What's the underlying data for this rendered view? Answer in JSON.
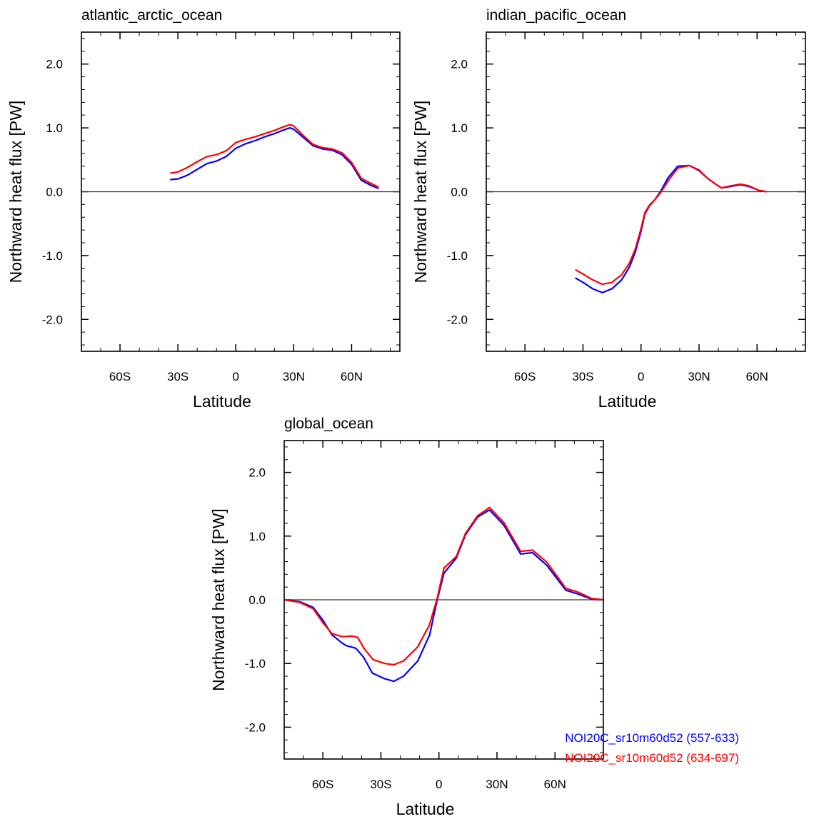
{
  "chart_data": [
    {
      "type": "line",
      "title": "atlantic_arctic_ocean",
      "xlabel": "Latitude",
      "ylabel": "Northward heat flux [PW]",
      "xlim": [
        -80,
        85
      ],
      "ylim": [
        -2.5,
        2.5
      ],
      "xticks": [
        -60,
        -30,
        0,
        30,
        60
      ],
      "xticklabels": [
        "60S",
        "30S",
        "0",
        "30N",
        "60N"
      ],
      "yticks": [
        -2,
        -1,
        0,
        1,
        2
      ],
      "yticklabels": [
        "-2.0",
        "-1.0",
        "0.0",
        "1.0",
        "2.0"
      ],
      "reference_line": 0,
      "series": [
        {
          "name": "NOI20C_sr10m60d52 (557-633)",
          "color": "#0000ff",
          "x": [
            -34,
            -30,
            -25,
            -20,
            -15,
            -10,
            -5,
            0,
            5,
            10,
            15,
            20,
            25,
            28,
            30,
            35,
            40,
            45,
            50,
            55,
            60,
            65,
            70,
            74
          ],
          "y": [
            0.19,
            0.2,
            0.26,
            0.35,
            0.44,
            0.48,
            0.55,
            0.68,
            0.75,
            0.8,
            0.86,
            0.91,
            0.97,
            1.0,
            0.98,
            0.85,
            0.72,
            0.67,
            0.65,
            0.58,
            0.43,
            0.18,
            0.1,
            0.05
          ]
        },
        {
          "name": "NOI20C_sr10m60d52 (634-697)",
          "color": "#ff0000",
          "x": [
            -34,
            -30,
            -25,
            -20,
            -15,
            -10,
            -5,
            0,
            5,
            10,
            15,
            20,
            25,
            28,
            30,
            35,
            40,
            45,
            50,
            55,
            60,
            65,
            70,
            74
          ],
          "y": [
            0.29,
            0.31,
            0.38,
            0.47,
            0.55,
            0.58,
            0.64,
            0.77,
            0.82,
            0.86,
            0.91,
            0.96,
            1.02,
            1.05,
            1.03,
            0.88,
            0.74,
            0.69,
            0.67,
            0.61,
            0.46,
            0.21,
            0.13,
            0.07
          ]
        }
      ]
    },
    {
      "type": "line",
      "title": "indian_pacific_ocean",
      "xlabel": "Latitude",
      "ylabel": "Northward heat flux [PW]",
      "xlim": [
        -80,
        85
      ],
      "ylim": [
        -2.5,
        2.5
      ],
      "xticks": [
        -60,
        -30,
        0,
        30,
        60
      ],
      "xticklabels": [
        "60S",
        "30S",
        "0",
        "30N",
        "60N"
      ],
      "yticks": [
        -2,
        -1,
        0,
        1,
        2
      ],
      "yticklabels": [
        "-2.0",
        "-1.0",
        "0.0",
        "1.0",
        "2.0"
      ],
      "reference_line": 0,
      "series": [
        {
          "name": "NOI20C_sr10m60d52 (557-633)",
          "color": "#0000ff",
          "x": [
            -34,
            -30,
            -25,
            -20,
            -15,
            -10,
            -6,
            -3,
            0,
            2,
            4.4,
            7,
            10,
            14,
            19,
            25,
            30,
            34,
            38,
            41.5,
            46,
            51.5,
            56,
            61,
            65
          ],
          "y": [
            -1.35,
            -1.42,
            -1.52,
            -1.58,
            -1.52,
            -1.38,
            -1.18,
            -0.95,
            -0.62,
            -0.35,
            -0.22,
            -0.13,
            0.0,
            0.22,
            0.4,
            0.41,
            0.33,
            0.22,
            0.13,
            0.06,
            0.08,
            0.11,
            0.08,
            0.02,
            0.0
          ]
        },
        {
          "name": "NOI20C_sr10m60d52 (634-697)",
          "color": "#ff0000",
          "x": [
            -34,
            -30,
            -25,
            -20,
            -15,
            -10,
            -6,
            -3,
            0,
            2,
            4.4,
            7,
            10,
            14,
            19,
            25,
            30,
            34,
            38,
            41.5,
            46,
            51.5,
            56,
            61,
            65
          ],
          "y": [
            -1.22,
            -1.29,
            -1.38,
            -1.45,
            -1.42,
            -1.3,
            -1.12,
            -0.9,
            -0.58,
            -0.33,
            -0.21,
            -0.13,
            -0.02,
            0.17,
            0.37,
            0.41,
            0.34,
            0.22,
            0.13,
            0.06,
            0.09,
            0.12,
            0.09,
            0.02,
            0.0
          ]
        }
      ]
    },
    {
      "type": "line",
      "title": "global_ocean",
      "xlabel": "Latitude",
      "ylabel": "Northward heat flux [PW]",
      "xlim": [
        -80,
        85
      ],
      "ylim": [
        -2.5,
        2.5
      ],
      "xticks": [
        -60,
        -30,
        0,
        30,
        60
      ],
      "xticklabels": [
        "60S",
        "30S",
        "0",
        "30N",
        "60N"
      ],
      "yticks": [
        -2,
        -1,
        0,
        1,
        2
      ],
      "yticklabels": [
        "-2.0",
        "-1.0",
        "0.0",
        "1.0",
        "2.0"
      ],
      "reference_line": 0,
      "legend": "bottom-right",
      "series": [
        {
          "name": "NOI20C_sr10m60d52 (557-633)",
          "color": "#0000ff",
          "x": [
            -80,
            -72,
            -65,
            -60,
            -55.3,
            -50,
            -47.9,
            -43,
            -39,
            -34.4,
            -28,
            -23.3,
            -18.3,
            -10.9,
            -4.8,
            -1.1,
            2.6,
            8.9,
            13.7,
            20,
            26.2,
            33.6,
            42.2,
            48.4,
            55.8,
            65.6,
            71.9,
            79,
            85
          ],
          "y": [
            0,
            -0.03,
            -0.12,
            -0.32,
            -0.55,
            -0.68,
            -0.72,
            -0.76,
            -0.9,
            -1.15,
            -1.24,
            -1.28,
            -1.2,
            -0.96,
            -0.55,
            -0.03,
            0.42,
            0.65,
            1.02,
            1.3,
            1.41,
            1.17,
            0.72,
            0.74,
            0.54,
            0.15,
            0.09,
            0.01,
            0
          ]
        },
        {
          "name": "NOI20C_sr10m60d52 (634-697)",
          "color": "#ff0000",
          "x": [
            -80,
            -72,
            -65,
            -60,
            -55.3,
            -50,
            -45,
            -42,
            -38.6,
            -34,
            -28,
            -23.3,
            -18.3,
            -11,
            -5,
            -1,
            2.6,
            9,
            13.7,
            20,
            26.2,
            33.6,
            42.2,
            48.4,
            55.8,
            65.6,
            71.9,
            79,
            85
          ],
          "y": [
            0,
            -0.04,
            -0.14,
            -0.36,
            -0.53,
            -0.58,
            -0.57,
            -0.59,
            -0.77,
            -0.94,
            -1.0,
            -1.02,
            -0.96,
            -0.74,
            -0.4,
            0.01,
            0.5,
            0.68,
            1.04,
            1.32,
            1.45,
            1.21,
            0.76,
            0.78,
            0.59,
            0.18,
            0.12,
            0.02,
            0
          ]
        }
      ]
    }
  ]
}
